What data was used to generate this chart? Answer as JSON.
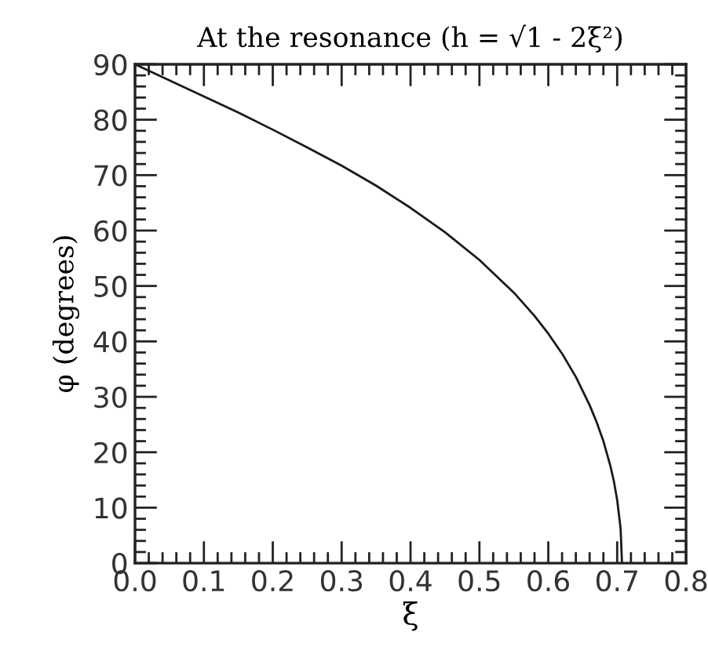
{
  "chart_data": {
    "type": "line",
    "title": "At the resonance (h = √1 - 2ξ²)",
    "xlabel": "ξ",
    "ylabel": "φ (degrees)",
    "x": [
      0,
      0.05,
      0.1,
      0.15,
      0.2,
      0.25,
      0.3,
      0.35,
      0.4,
      0.45,
      0.5,
      0.55,
      0.58,
      0.6,
      0.62,
      0.64,
      0.66,
      0.67,
      0.68,
      0.69,
      0.695,
      0.7,
      0.705,
      0.707
    ],
    "values": [
      90,
      87.1,
      84.2,
      81.3,
      78.2,
      75.0,
      71.7,
      68.1,
      64.1,
      59.7,
      54.7,
      48.8,
      44.6,
      41.4,
      37.8,
      33.6,
      28.5,
      25.5,
      22.0,
      17.6,
      14.9,
      11.4,
      6.2,
      0
    ],
    "color": "#1a1a1a",
    "line_style": "solid",
    "grid": false,
    "xlim": [
      0,
      0.8
    ],
    "ylim": [
      0,
      90
    ],
    "xticks": [
      {
        "value": 0,
        "label": "0.0"
      },
      {
        "value": 0.02,
        "label": null
      },
      {
        "value": 0.04,
        "label": null
      },
      {
        "value": 0.06,
        "label": null
      },
      {
        "value": 0.08,
        "label": null
      },
      {
        "value": 0.1,
        "label": "0.1"
      },
      {
        "value": 0.12,
        "label": null
      },
      {
        "value": 0.14,
        "label": null
      },
      {
        "value": 0.16,
        "label": null
      },
      {
        "value": 0.18,
        "label": null
      },
      {
        "value": 0.2,
        "label": "0.2"
      },
      {
        "value": 0.22,
        "label": null
      },
      {
        "value": 0.24,
        "label": null
      },
      {
        "value": 0.26,
        "label": null
      },
      {
        "value": 0.28,
        "label": null
      },
      {
        "value": 0.3,
        "label": "0.3"
      },
      {
        "value": 0.32,
        "label": null
      },
      {
        "value": 0.34,
        "label": null
      },
      {
        "value": 0.36,
        "label": null
      },
      {
        "value": 0.38,
        "label": null
      },
      {
        "value": 0.4,
        "label": "0.4"
      },
      {
        "value": 0.42,
        "label": null
      },
      {
        "value": 0.44,
        "label": null
      },
      {
        "value": 0.46,
        "label": null
      },
      {
        "value": 0.48,
        "label": null
      },
      {
        "value": 0.5,
        "label": "0.5"
      },
      {
        "value": 0.52,
        "label": null
      },
      {
        "value": 0.54,
        "label": null
      },
      {
        "value": 0.56,
        "label": null
      },
      {
        "value": 0.58,
        "label": null
      },
      {
        "value": 0.6,
        "label": "0.6"
      },
      {
        "value": 0.62,
        "label": null
      },
      {
        "value": 0.64,
        "label": null
      },
      {
        "value": 0.66,
        "label": null
      },
      {
        "value": 0.68,
        "label": null
      },
      {
        "value": 0.7,
        "label": "0.7"
      },
      {
        "value": 0.72,
        "label": null
      },
      {
        "value": 0.74,
        "label": null
      },
      {
        "value": 0.76,
        "label": null
      },
      {
        "value": 0.78,
        "label": null
      },
      {
        "value": 0.8,
        "label": "0.8"
      }
    ],
    "yticks": [
      0,
      {
        "value": 2,
        "label": null
      },
      {
        "value": 4,
        "label": null
      },
      {
        "value": 6,
        "label": null
      },
      {
        "value": 8,
        "label": null
      },
      10,
      {
        "value": 12,
        "label": null
      },
      {
        "value": 14,
        "label": null
      },
      {
        "value": 16,
        "label": null
      },
      {
        "value": 18,
        "label": null
      },
      20,
      {
        "value": 22,
        "label": null
      },
      {
        "value": 24,
        "label": null
      },
      {
        "value": 26,
        "label": null
      },
      {
        "value": 28,
        "label": null
      },
      30,
      {
        "value": 32,
        "label": null
      },
      {
        "value": 34,
        "label": null
      },
      {
        "value": 36,
        "label": null
      },
      {
        "value": 38,
        "label": null
      },
      40,
      {
        "value": 42,
        "label": null
      },
      {
        "value": 44,
        "label": null
      },
      {
        "value": 46,
        "label": null
      },
      {
        "value": 48,
        "label": null
      },
      50,
      {
        "value": 52,
        "label": null
      },
      {
        "value": 54,
        "label": null
      },
      {
        "value": 56,
        "label": null
      },
      {
        "value": 58,
        "label": null
      },
      60,
      {
        "value": 62,
        "label": null
      },
      {
        "value": 64,
        "label": null
      },
      {
        "value": 66,
        "label": null
      },
      {
        "value": 68,
        "label": null
      },
      70,
      {
        "value": 72,
        "label": null
      },
      {
        "value": 74,
        "label": null
      },
      {
        "value": 76,
        "label": null
      },
      {
        "value": 78,
        "label": null
      },
      80,
      {
        "value": 82,
        "label": null
      },
      {
        "value": 84,
        "label": null
      },
      {
        "value": 86,
        "label": null
      },
      {
        "value": 88,
        "label": null
      },
      90
    ]
  }
}
